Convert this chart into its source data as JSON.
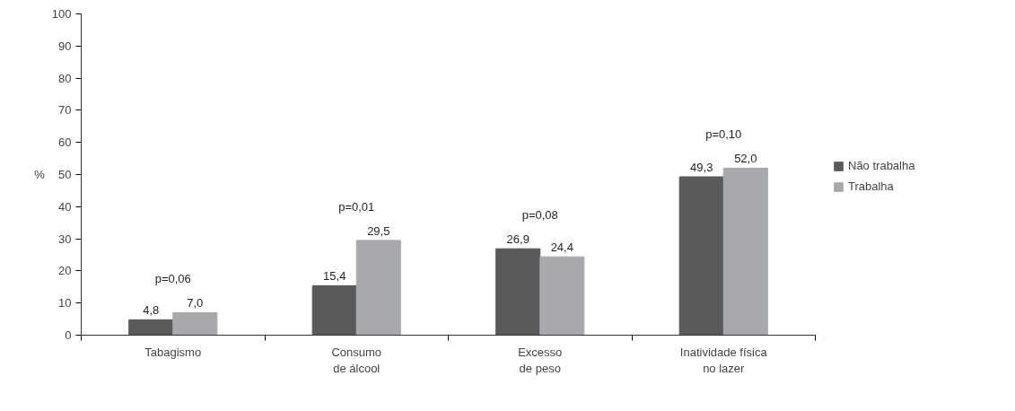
{
  "chart_data": {
    "type": "bar",
    "ylabel": "%",
    "categories": [
      "Tabagismo",
      "Consumo\nde álcool",
      "Excesso\nde peso",
      "Inatividade física\nno lazer"
    ],
    "series": [
      {
        "name": "Não trabalha",
        "color": "#58595b",
        "values": [
          4.8,
          15.4,
          26.9,
          49.3
        ],
        "value_labels": [
          "4,8",
          "15,4",
          "26,9",
          "49,3"
        ]
      },
      {
        "name": "Trabalha",
        "color": "#a7a9ac",
        "values": [
          7.0,
          29.5,
          24.4,
          52.0
        ],
        "value_labels": [
          "7,0",
          "29,5",
          "24,4",
          "52,0"
        ]
      }
    ],
    "ylim": [
      0,
      100
    ],
    "yticks": [
      0,
      10,
      20,
      30,
      40,
      50,
      60,
      70,
      80,
      90,
      100
    ],
    "grid": false,
    "legend": "right",
    "annotations": [
      "p=0,06",
      "p=0,01",
      "p=0,08",
      "p=0,10"
    ]
  }
}
